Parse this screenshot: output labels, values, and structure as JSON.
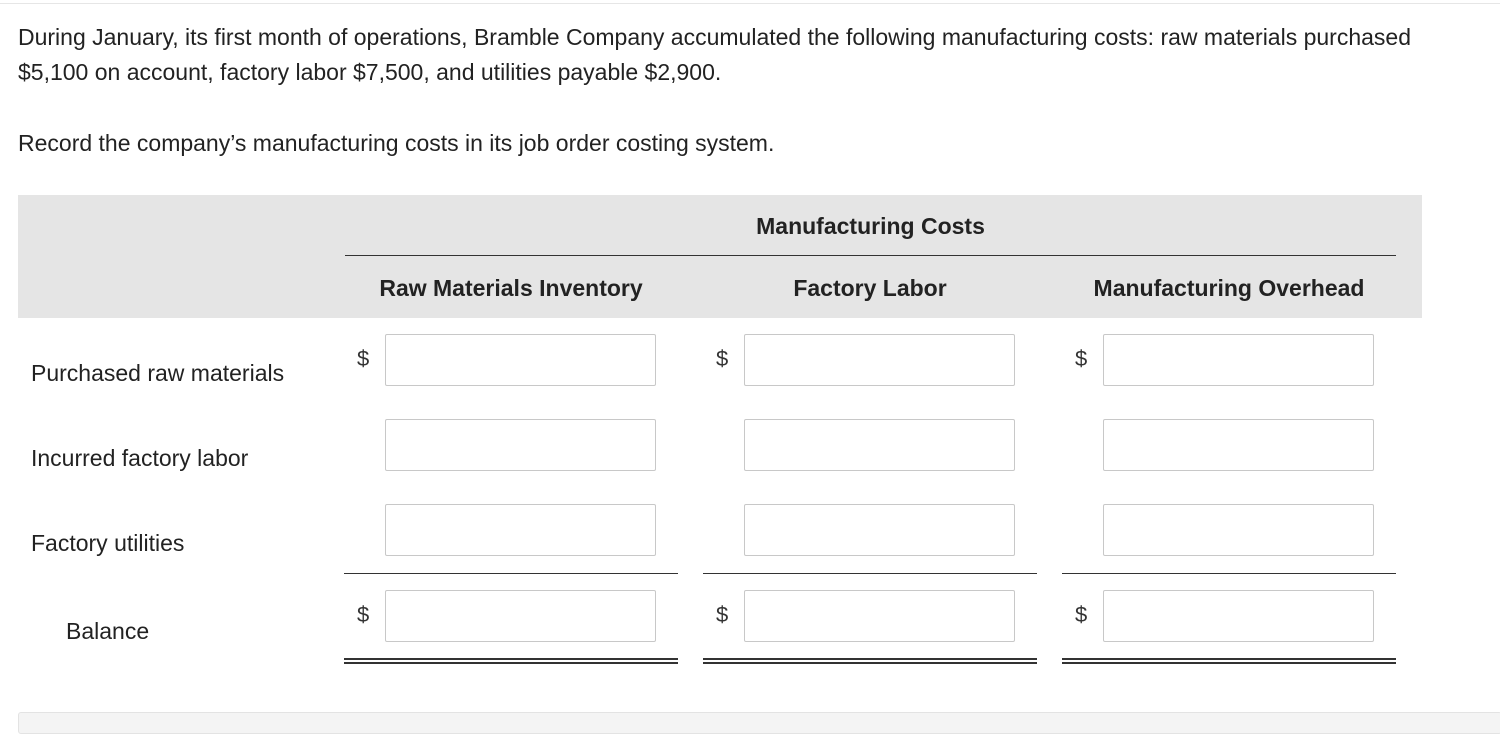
{
  "question": {
    "text": "During January, its first month of operations, Bramble Company accumulated the following manufacturing costs: raw materials purchased $5,100 on account, factory labor $7,500, and utilities payable $2,900.",
    "instruction": "Record the company’s manufacturing costs in its job order costing system."
  },
  "table": {
    "group_header": "Manufacturing Costs",
    "columns": [
      "Raw Materials Inventory",
      "Factory Labor",
      "Manufacturing Overhead"
    ],
    "currency_symbol": "$",
    "rows": [
      {
        "label": "Purchased raw materials",
        "values": [
          "",
          "",
          ""
        ]
      },
      {
        "label": "Incurred factory labor",
        "values": [
          "",
          "",
          ""
        ]
      },
      {
        "label": "Factory utilities",
        "values": [
          "",
          "",
          ""
        ]
      }
    ],
    "balance": {
      "label": "Balance",
      "values": [
        "",
        "",
        ""
      ]
    }
  }
}
